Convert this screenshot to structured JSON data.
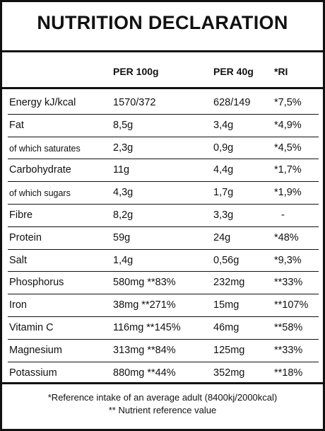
{
  "title": "NUTRITION DECLARATION",
  "table": {
    "header": [
      "PER 100g",
      "PER 40g",
      "*RI"
    ],
    "rows": [
      [
        "Energy kJ/kcal",
        "1570/372",
        "628/149",
        "*7,5%"
      ],
      [
        "Fat",
        "8,5g",
        "3,4g",
        "*4,9%"
      ],
      [
        "of which saturates",
        "2,3g",
        "0,9g",
        "*4,5%"
      ],
      [
        "Carbohydrate",
        "11g",
        "4,4g",
        "*1,7%"
      ],
      [
        "of which sugars",
        "4,3g",
        "1,7g",
        "*1,9%"
      ],
      [
        "Fibre",
        "8,2g",
        "3,3g",
        "-"
      ],
      [
        "Protein",
        "59g",
        "24g",
        "*48%"
      ],
      [
        "Salt",
        "1,4g",
        "0,56g",
        "*9,3%"
      ],
      [
        "Phosphorus",
        "580mg **83%",
        "232mg",
        "**33%"
      ],
      [
        "Iron",
        "38mg **271%",
        "15mg",
        "**107%"
      ],
      [
        "Vitamin C",
        "116mg **145%",
        "46mg",
        "**58%"
      ],
      [
        "Magnesium",
        "313mg **84%",
        "125mg",
        "**33%"
      ],
      [
        "Potassium",
        "880mg **44%",
        "352mg",
        "**18%"
      ]
    ]
  },
  "footer": [
    "*Reference intake of an average adult (8400kj/2000kcal)",
    "** Nutrient reference value"
  ]
}
